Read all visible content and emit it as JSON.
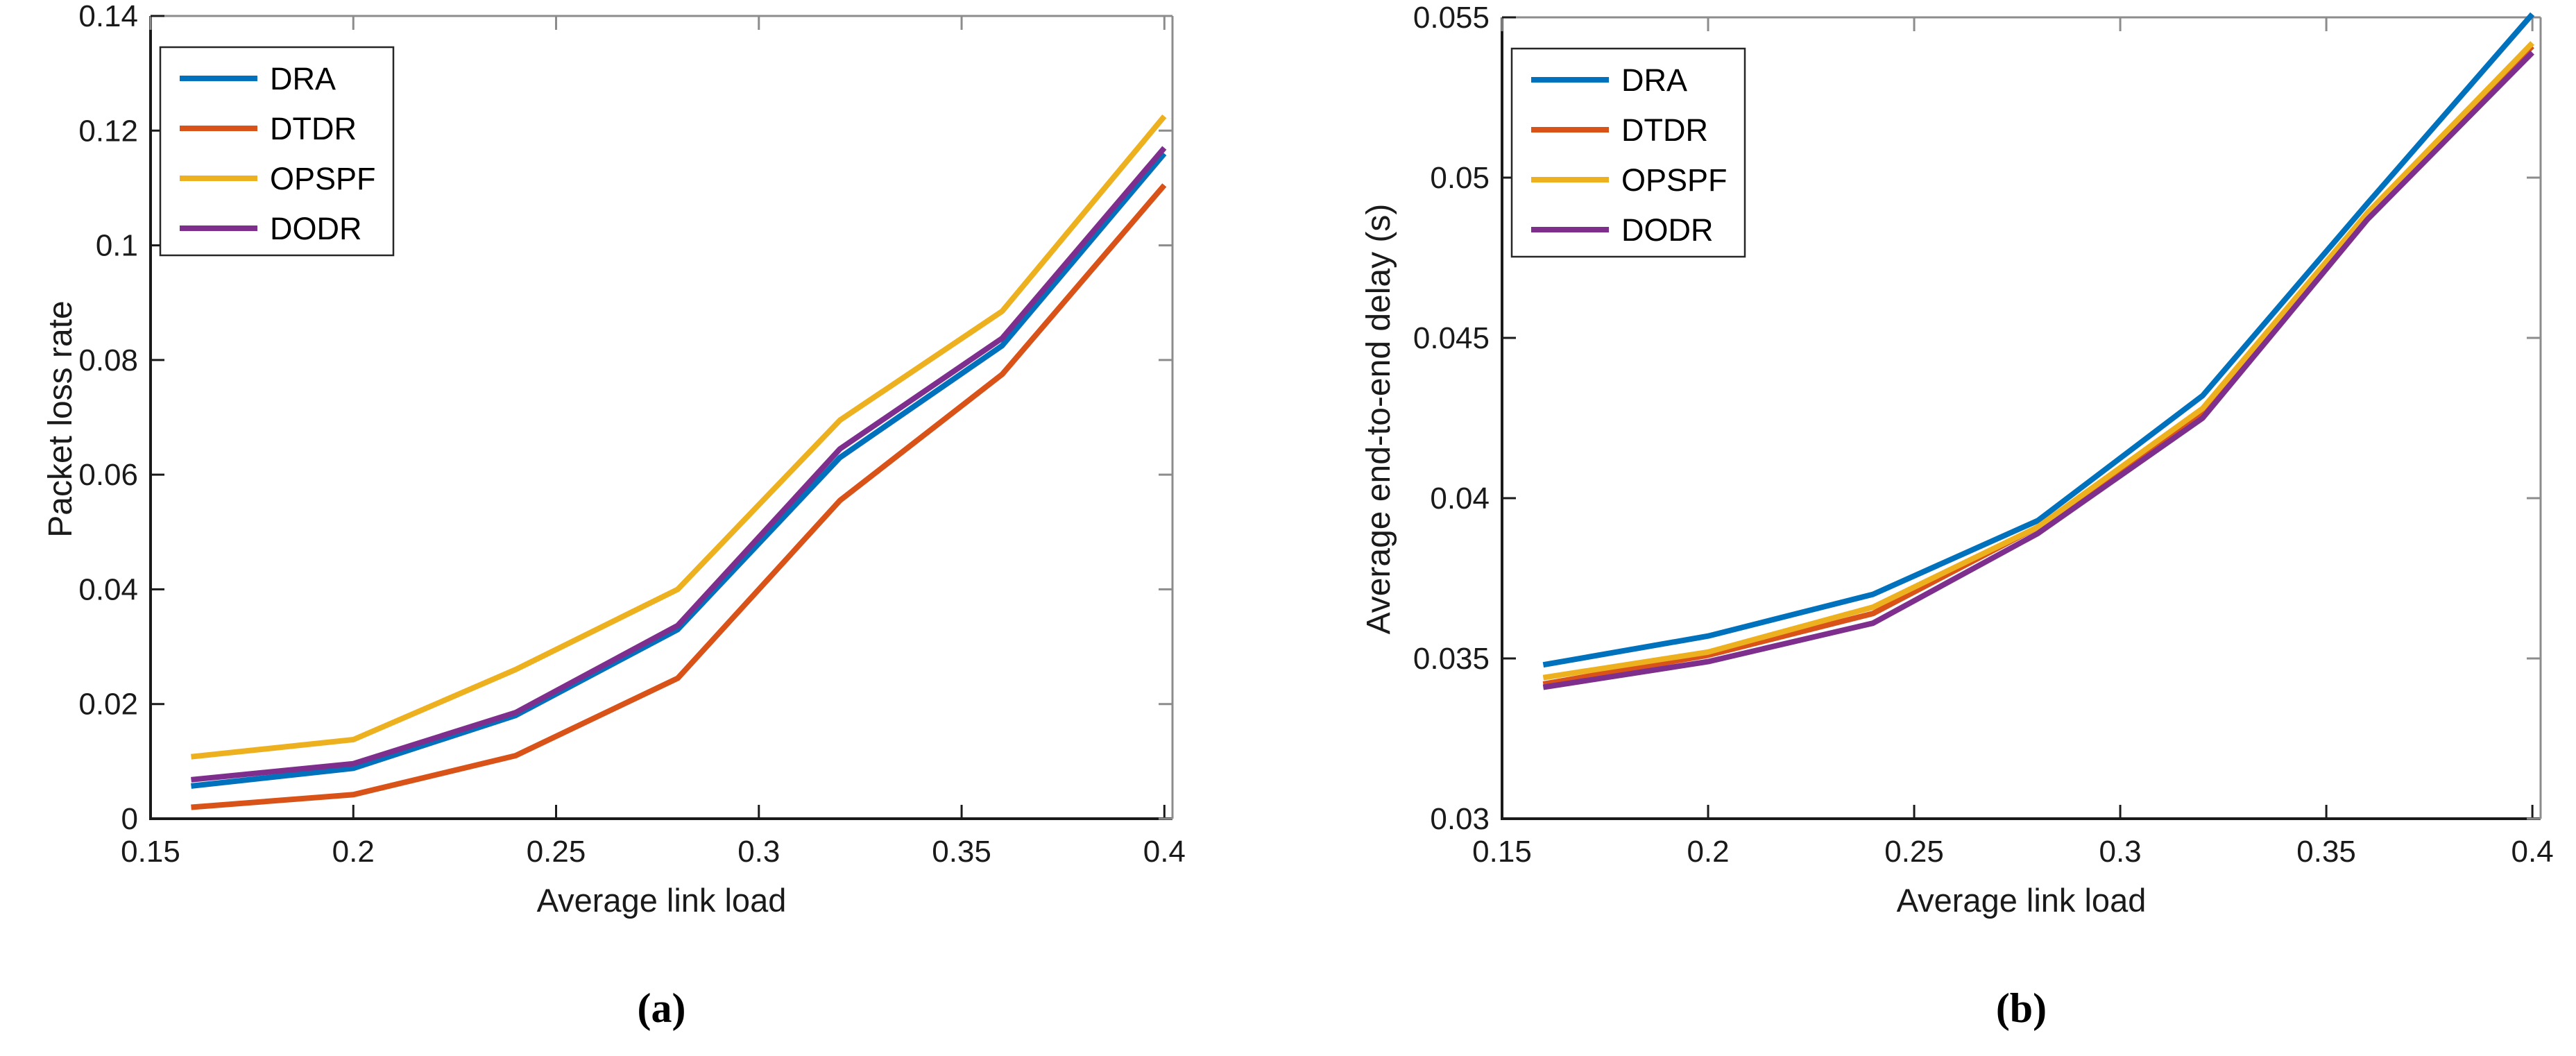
{
  "figure": {
    "background": "#ffffff",
    "captions": {
      "a": "(a)",
      "b": "(b)"
    }
  },
  "colors": {
    "axis_dark": "#1a1a1a",
    "axis_light": "#8c8c8c",
    "legend_border": "#262626",
    "legend_background": "#ffffff",
    "series_dra": "#0072BD",
    "series_dtdr": "#D95319",
    "series_opspf": "#EDB120",
    "series_dodr": "#7E2F8E"
  },
  "chart_data": [
    {
      "id": "a",
      "type": "line",
      "caption": "(a)",
      "xlabel": "Average link load",
      "ylabel": "Packet loss rate",
      "x": [
        0.16,
        0.2,
        0.24,
        0.28,
        0.32,
        0.36,
        0.4
      ],
      "series": [
        {
          "name": "DRA",
          "color": "#0072BD",
          "values": [
            0.0057,
            0.0088,
            0.018,
            0.033,
            0.063,
            0.0825,
            0.116
          ]
        },
        {
          "name": "DTDR",
          "color": "#D95319",
          "values": [
            0.002,
            0.0042,
            0.011,
            0.0245,
            0.0555,
            0.0775,
            0.1105
          ]
        },
        {
          "name": "OPSPF",
          "color": "#EDB120",
          "values": [
            0.0108,
            0.0138,
            0.026,
            0.04,
            0.0695,
            0.0885,
            0.1225
          ]
        },
        {
          "name": "DODR",
          "color": "#7E2F8E",
          "values": [
            0.0068,
            0.0096,
            0.0185,
            0.0337,
            0.0645,
            0.0838,
            0.117
          ]
        }
      ],
      "xlim": [
        0.15,
        0.402
      ],
      "ylim": [
        0,
        0.14
      ],
      "xticks": {
        "values": [
          0.15,
          0.2,
          0.25,
          0.3,
          0.35,
          0.4
        ],
        "labels": [
          "0.15",
          "0.2",
          "0.25",
          "0.3",
          "0.35",
          "0.4"
        ]
      },
      "yticks": {
        "values": [
          0,
          0.02,
          0.04,
          0.06,
          0.08,
          0.1,
          0.12,
          0.14
        ],
        "labels": [
          "0",
          "0.02",
          "0.04",
          "0.06",
          "0.08",
          "0.1",
          "0.12",
          "0.14"
        ]
      },
      "legend": {
        "position": "top-left",
        "entries": [
          "DRA",
          "DTDR",
          "OPSPF",
          "DODR"
        ]
      },
      "grid": false
    },
    {
      "id": "b",
      "type": "line",
      "caption": "(b)",
      "xlabel": "Average link load",
      "ylabel": "Average end-to-end delay (s)",
      "x": [
        0.16,
        0.2,
        0.24,
        0.28,
        0.32,
        0.36,
        0.4
      ],
      "series": [
        {
          "name": "DRA",
          "color": "#0072BD",
          "values": [
            0.0348,
            0.0357,
            0.037,
            0.0393,
            0.0432,
            0.0492,
            0.0551
          ]
        },
        {
          "name": "DTDR",
          "color": "#D95319",
          "values": [
            0.0342,
            0.0351,
            0.0364,
            0.0391,
            0.0427,
            0.0488,
            0.0541
          ]
        },
        {
          "name": "OPSPF",
          "color": "#EDB120",
          "values": [
            0.0344,
            0.0352,
            0.0366,
            0.0391,
            0.0428,
            0.0489,
            0.0542
          ]
        },
        {
          "name": "DODR",
          "color": "#7E2F8E",
          "values": [
            0.0341,
            0.0349,
            0.0361,
            0.0389,
            0.0425,
            0.0487,
            0.0539
          ]
        }
      ],
      "xlim": [
        0.15,
        0.402
      ],
      "ylim": [
        0.03,
        0.055
      ],
      "xticks": {
        "values": [
          0.15,
          0.2,
          0.25,
          0.3,
          0.35,
          0.4
        ],
        "labels": [
          "0.15",
          "0.2",
          "0.25",
          "0.3",
          "0.35",
          "0.4"
        ]
      },
      "yticks": {
        "values": [
          0.03,
          0.035,
          0.04,
          0.045,
          0.05,
          0.055
        ],
        "labels": [
          "0.03",
          "0.035",
          "0.04",
          "0.045",
          "0.05",
          "0.055"
        ]
      },
      "legend": {
        "position": "top-left",
        "entries": [
          "DRA",
          "DTDR",
          "OPSPF",
          "DODR"
        ]
      },
      "grid": false
    }
  ]
}
